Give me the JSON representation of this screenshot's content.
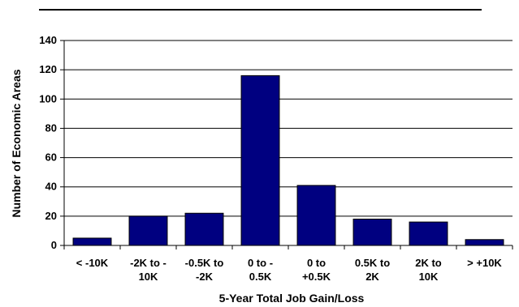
{
  "chart_data": {
    "type": "bar",
    "categories": [
      [
        "< -10K"
      ],
      [
        "-2K to -",
        "10K"
      ],
      [
        "-0.5K to",
        "-2K"
      ],
      [
        "0 to -",
        "0.5K"
      ],
      [
        "0 to",
        "+0.5K"
      ],
      [
        "0.5K to",
        "2K"
      ],
      [
        "2K to",
        "10K"
      ],
      [
        "> +10K"
      ]
    ],
    "values": [
      5,
      20,
      22,
      116,
      41,
      18,
      16,
      4
    ],
    "xlabel": "5-Year Total Job Gain/Loss",
    "ylabel": "Number of Economic Areas",
    "ylim": [
      0,
      140
    ],
    "yticks": [
      0,
      20,
      40,
      60,
      80,
      100,
      120,
      140
    ],
    "grid": true,
    "legend": "none",
    "colors": {
      "bar": "#000080",
      "grid": "#000000",
      "axis": "#000000",
      "rule": "#000000"
    }
  }
}
